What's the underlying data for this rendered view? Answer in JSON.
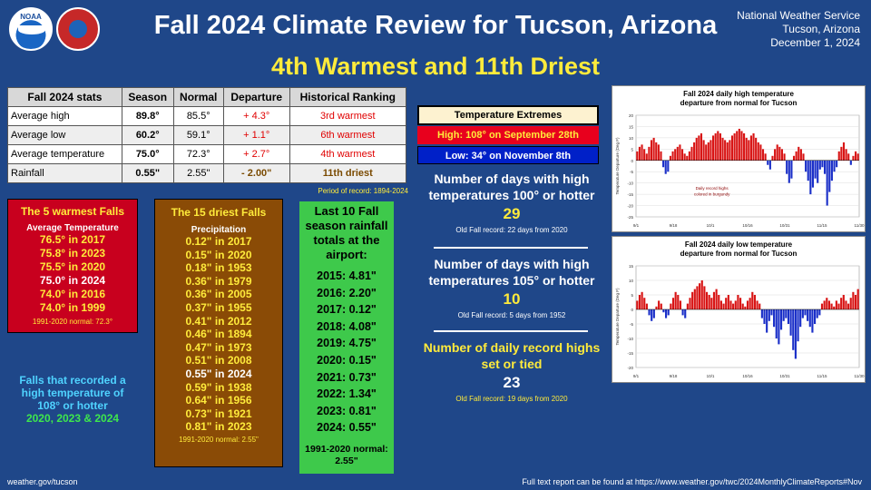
{
  "header": {
    "title": "Fall 2024 Climate Review for Tucson, Arizona",
    "subtitle": "4th Warmest and 11th Driest",
    "office": [
      "National Weather Service",
      "Tucson, Arizona",
      "December 1, 2024"
    ],
    "logo_noaa_text": "NOAA"
  },
  "stats_table": {
    "headers": [
      "Fall 2024 stats",
      "Season",
      "Normal",
      "Departure",
      "Historical Ranking"
    ],
    "rows": [
      [
        "Average high",
        "89.8°",
        "85.5°",
        "+ 4.3°",
        "3rd warmest"
      ],
      [
        "Average low",
        "60.2°",
        "59.1°",
        "+ 1.1°",
        "6th warmest"
      ],
      [
        "Average temperature",
        "75.0°",
        "72.3°",
        "+ 2.7°",
        "4th warmest"
      ],
      [
        "Rainfall",
        "0.55\"",
        "2.55\"",
        "- 2.00\"",
        "11th driest"
      ]
    ],
    "period_of_record": "Period of record: 1894-2024"
  },
  "warmest": {
    "title": "The 5 warmest Falls",
    "sub": "Average Temperature",
    "items": [
      "76.5° in 2017",
      "75.8° in 2023",
      "75.5° in 2020",
      "75.0° in 2024",
      "74.0° in 2016",
      "74.0° in 1999"
    ],
    "normal": "1991-2020 normal: 72.3°"
  },
  "falls108": {
    "text": "Falls that recorded a high temperature of 108° or hotter",
    "years": "2020, 2023 & 2024"
  },
  "driest": {
    "title": "The 15 driest Falls",
    "sub": "Precipitation",
    "items": [
      "0.12\" in 2017",
      "0.15\" in 2020",
      "0.18\" in 1953",
      "0.36\" in 1979",
      "0.36\" in 2005",
      "0.37\" in 1955",
      "0.41\" in 2012",
      "0.46\" in 1894",
      "0.47\" in 1973",
      "0.51\" in 2008",
      "0.55\" in 2024",
      "0.59\" in 1938",
      "0.64\" in 1956",
      "0.73\" in 1921",
      "0.81\" in 2023"
    ],
    "normal": "1991-2020 normal: 2.55\""
  },
  "rainfall10": {
    "title": "Last 10 Fall season rainfall totals at the airport:",
    "items": [
      "2015: 4.81\"",
      "2016: 2.20\"",
      "2017: 0.12\"",
      "2018: 4.08\"",
      "2019: 4.75\"",
      "2020: 0.15\"",
      "2021: 0.73\"",
      "2022: 1.34\"",
      "2023: 0.81\"",
      "2024: 0.55\""
    ],
    "normal": "1991-2020 normal: 2.55\""
  },
  "extremes": {
    "title": "Temperature Extremes",
    "high": "High: 108° on September 28th",
    "low": "Low: 34° on November 8th"
  },
  "days100": {
    "title": "Number of days with high temperatures 100° or hotter",
    "value": "29",
    "record": "Old Fall record: 22 days from 2020"
  },
  "days105": {
    "title": "Number of days with high temperatures 105° or hotter",
    "value": "10",
    "record": "Old Fall record: 5 days from 1952"
  },
  "records": {
    "title": "Number of daily record highs set or tied",
    "value": "23",
    "record": "Old Fall record: 19 days from 2020"
  },
  "chart_data": [
    {
      "type": "bar",
      "title": "Fall 2024 daily high temperature departure from normal for Tucson",
      "ylabel": "Temperature Departure (Deg F)",
      "annotation": "Daily record highs colored in burgundy",
      "ylim": [
        -25,
        20
      ],
      "xticks": [
        "9/1",
        "9/18",
        "10/1",
        "10/16",
        "10/31",
        "11/15",
        "11/30"
      ],
      "yticks": [
        20,
        15,
        10,
        5,
        0,
        -5,
        -10,
        -15,
        -20,
        -25
      ],
      "values": [
        4,
        6,
        7,
        5,
        3,
        6,
        9,
        10,
        8,
        7,
        4,
        -3,
        -6,
        -5,
        2,
        4,
        5,
        6,
        7,
        5,
        3,
        2,
        4,
        6,
        8,
        10,
        11,
        12,
        9,
        7,
        8,
        9,
        11,
        12,
        13,
        12,
        10,
        9,
        8,
        9,
        11,
        12,
        13,
        14,
        13,
        12,
        10,
        9,
        11,
        12,
        10,
        8,
        7,
        5,
        3,
        -2,
        -4,
        2,
        5,
        7,
        6,
        5,
        3,
        -6,
        -10,
        -8,
        2,
        4,
        6,
        5,
        3,
        -5,
        -9,
        -15,
        -12,
        -8,
        -10,
        -4,
        -3,
        -6,
        -20,
        -14,
        -9,
        -5,
        -3,
        4,
        6,
        8,
        5,
        3,
        -2,
        2,
        4,
        3
      ]
    },
    {
      "type": "bar",
      "title": "Fall 2024 daily low temperature departure from normal for Tucson",
      "ylabel": "Temperature Departure (Deg F)",
      "ylim": [
        -20,
        15
      ],
      "xticks": [
        "9/1",
        "9/18",
        "10/1",
        "10/16",
        "10/31",
        "11/15",
        "11/30"
      ],
      "yticks": [
        15,
        10,
        5,
        0,
        -5,
        -10,
        -15,
        -20
      ],
      "values": [
        3,
        5,
        6,
        4,
        2,
        -2,
        -4,
        -3,
        1,
        3,
        2,
        -1,
        -3,
        -2,
        2,
        4,
        6,
        5,
        3,
        -2,
        -3,
        2,
        4,
        6,
        7,
        8,
        9,
        10,
        8,
        6,
        5,
        4,
        6,
        7,
        5,
        3,
        2,
        4,
        5,
        3,
        2,
        3,
        5,
        4,
        2,
        1,
        3,
        4,
        6,
        5,
        3,
        2,
        -3,
        -5,
        -8,
        -4,
        -2,
        -6,
        -10,
        -12,
        -7,
        -4,
        -3,
        -5,
        -9,
        -14,
        -17,
        -11,
        -6,
        -3,
        -2,
        -4,
        -6,
        -8,
        -5,
        -3,
        -2,
        2,
        3,
        4,
        3,
        2,
        1,
        3,
        2,
        4,
        5,
        3,
        2,
        4,
        6,
        5,
        7
      ]
    }
  ],
  "footer": {
    "left": "weather.gov/tucson",
    "right": "Full text report can be found at https://www.weather.gov/twc/2024MonthlyClimateReports#Nov"
  },
  "colors": {
    "background": "#1f4789",
    "high": "#e00000",
    "low": "#0020c8",
    "accent": "#ffeb3b",
    "rain": "#3ec94b",
    "dry": "#8a4b06"
  }
}
